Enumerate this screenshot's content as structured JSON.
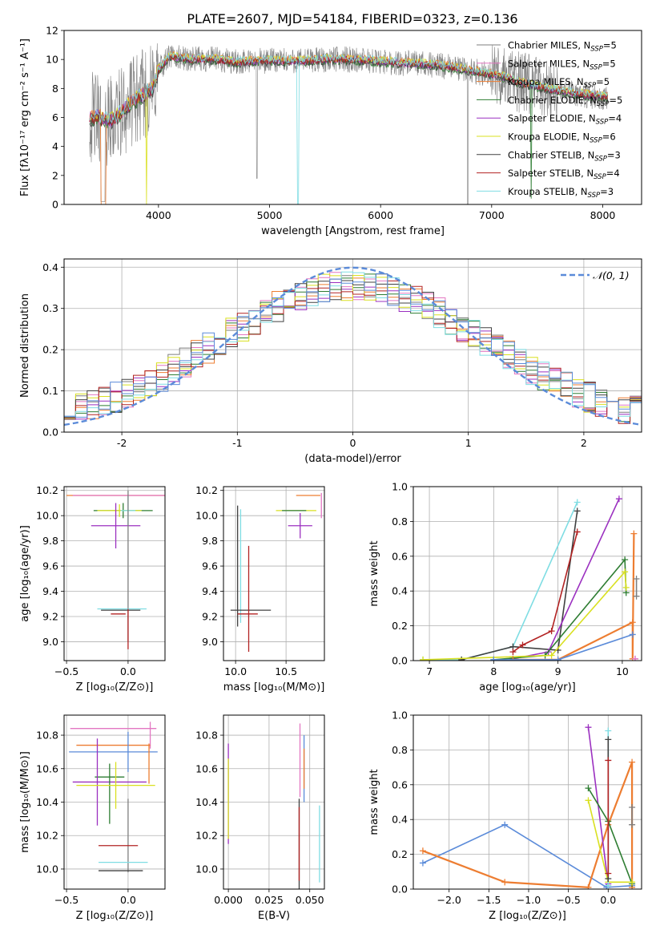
{
  "figure_title": "PLATE=2607, MJD=54184, FIBERID=0323, z=0.136",
  "colors": {
    "chabrier_miles": "#7f7f7f",
    "salpeter_miles": "#e377c2",
    "kroupa_miles": "#ed7d31",
    "chabrier_elodie": "#2e7d32",
    "salpeter_elodie": "#9b30c0",
    "kroupa_elodie": "#d9e021",
    "chabrier_stelib": "#404040",
    "salpeter_stelib": "#b22222",
    "kroupa_stelib": "#7fdde3",
    "blue": "#5b8bd9",
    "normal": "#5b8bd9"
  },
  "chart_data": [
    {
      "id": "spectrum",
      "type": "line",
      "title": "PLATE=2607, MJD=54184, FIBERID=0323, z=0.136",
      "xlabel": "wavelength [Angstrom, rest frame]",
      "ylabel": "Flux [fλ10⁻¹⁷ erg cm⁻² s⁻¹ A⁻¹]",
      "xlim": [
        3150,
        8350
      ],
      "ylim": [
        0,
        12
      ],
      "xticks": [
        4000,
        5000,
        6000,
        7000,
        8000
      ],
      "yticks": [
        0,
        2,
        4,
        6,
        8,
        10,
        12
      ],
      "grid": false,
      "legend_position": "top-right",
      "legend": [
        {
          "main": "Chabrier MILES, N",
          "sub": "SSP",
          "tail": "=5",
          "color": "#7f7f7f"
        },
        {
          "main": "Salpeter MILES, N",
          "sub": "SSP",
          "tail": "=5",
          "color": "#e377c2"
        },
        {
          "main": "Kroupa MILES, N",
          "sub": "SSP",
          "tail": "=5",
          "color": "#ed7d31"
        },
        {
          "main": "Chabrier ELODIE, N",
          "sub": "SSP",
          "tail": "=5",
          "color": "#2e7d32"
        },
        {
          "main": "Salpeter ELODIE, N",
          "sub": "SSP",
          "tail": "=4",
          "color": "#9b30c0"
        },
        {
          "main": "Kroupa ELODIE, N",
          "sub": "SSP",
          "tail": "=6",
          "color": "#d9e021"
        },
        {
          "main": "Chabrier STELIB, N",
          "sub": "SSP",
          "tail": "=3",
          "color": "#404040"
        },
        {
          "main": "Salpeter STELIB, N",
          "sub": "SSP",
          "tail": "=4",
          "color": "#b22222"
        },
        {
          "main": "Kroupa STELIB, N",
          "sub": "SSP",
          "tail": "=3",
          "color": "#7fdde3"
        }
      ],
      "continuum": [
        [
          3380,
          5.9
        ],
        [
          3450,
          6.1
        ],
        [
          3550,
          5.7
        ],
        [
          3650,
          6.2
        ],
        [
          3750,
          7.0
        ],
        [
          3850,
          7.5
        ],
        [
          3950,
          8.0
        ],
        [
          4000,
          9.3
        ],
        [
          4100,
          10.2
        ],
        [
          4300,
          10.0
        ],
        [
          4500,
          10.0
        ],
        [
          4700,
          9.8
        ],
        [
          4900,
          9.9
        ],
        [
          5100,
          9.9
        ],
        [
          5300,
          9.9
        ],
        [
          5500,
          10.0
        ],
        [
          5700,
          10.0
        ],
        [
          5900,
          9.9
        ],
        [
          6100,
          9.8
        ],
        [
          6300,
          9.7
        ],
        [
          6500,
          9.6
        ],
        [
          6700,
          9.4
        ],
        [
          6900,
          9.1
        ],
        [
          7100,
          8.8
        ],
        [
          7300,
          8.3
        ],
        [
          7500,
          8.0
        ],
        [
          7700,
          7.7
        ],
        [
          7900,
          7.5
        ],
        [
          8050,
          7.4
        ]
      ]
    },
    {
      "id": "residuals",
      "type": "histogram",
      "xlabel": "(data-model)/error",
      "ylabel": "Normed distribution",
      "xlim": [
        -2.5,
        2.5
      ],
      "ylim": [
        0,
        0.42
      ],
      "xticks": [
        -2,
        -1,
        0,
        1,
        2
      ],
      "yticks": [
        0.0,
        0.1,
        0.2,
        0.3,
        0.4
      ],
      "grid": true,
      "legend_position": "top-right",
      "legend": [
        {
          "label": "𝒩(0, 1)",
          "color": "#5b8bd9"
        }
      ],
      "bin_width": 0.1,
      "series_colors": [
        "#7f7f7f",
        "#e377c2",
        "#ed7d31",
        "#2e7d32",
        "#9b30c0",
        "#d9e021",
        "#404040",
        "#b22222",
        "#7fdde3",
        "#5b8bd9"
      ]
    },
    {
      "id": "age_vs_Z",
      "type": "errorbar",
      "xlabel": "Z [log₁₀(Z/Z⊙)]",
      "ylabel": "age  [log₁₀(age/yr)]",
      "xlim": [
        -0.52,
        0.3
      ],
      "ylim": [
        8.85,
        10.23
      ],
      "xticks": [
        -0.5,
        0.0
      ],
      "xticklabels": [
        "−0.5",
        "0.0"
      ],
      "yticks": [
        9.0,
        9.2,
        9.4,
        9.6,
        9.8,
        10.0,
        10.2
      ],
      "grid": true,
      "points": [
        {
          "x": 0.0,
          "y": 10.16,
          "xerr": 0.5,
          "yerr": 0.0,
          "color": "#ed7d31"
        },
        {
          "x": 0.0,
          "y": 10.16,
          "xerr": 0.45,
          "yerr": 0.0,
          "color": "#e377c2"
        },
        {
          "x": -0.04,
          "y": 10.04,
          "xerr": 0.24,
          "yerr": 0.06,
          "color": "#2e7d32"
        },
        {
          "x": -0.07,
          "y": 10.04,
          "xerr": 0.18,
          "yerr": 0.05,
          "color": "#d9e021"
        },
        {
          "x": 0.0,
          "y": 10.04,
          "xerr": 0.06,
          "yerr": 0.12,
          "color": "#7fdde3"
        },
        {
          "x": -0.1,
          "y": 9.92,
          "xerr": 0.2,
          "yerr": 0.18,
          "color": "#9b30c0"
        },
        {
          "x": 0.0,
          "y": 9.6,
          "xerr": 0.0,
          "yerr": 0.6,
          "color": "#7f7f7f"
        },
        {
          "x": -0.05,
          "y": 9.26,
          "xerr": 0.2,
          "yerr": 0.0,
          "color": "#7fdde3"
        },
        {
          "x": -0.06,
          "y": 9.25,
          "xerr": 0.16,
          "yerr": 0.0,
          "color": "#404040"
        },
        {
          "x": -0.08,
          "y": 9.22,
          "xerr": 0.06,
          "yerr": 0.0,
          "color": "#b22222"
        },
        {
          "x": 0.0,
          "y": 9.1,
          "xerr": 0.0,
          "yerr": 0.16,
          "color": "#b22222"
        }
      ]
    },
    {
      "id": "age_vs_mass",
      "type": "errorbar",
      "xlabel": "mass [log₁₀(M/M⊙)]",
      "ylabel": "",
      "xlim": [
        9.88,
        10.88
      ],
      "ylim": [
        8.85,
        10.23
      ],
      "xticks": [
        10.0,
        10.5
      ],
      "xticklabels": [
        "10.0",
        "10.5"
      ],
      "yticks": [
        9.0,
        9.2,
        9.4,
        9.6,
        9.8,
        10.0,
        10.2
      ],
      "grid": true,
      "points": [
        {
          "x": 10.72,
          "y": 10.16,
          "xerr": 0.12,
          "yerr": 0.0,
          "color": "#ed7d31"
        },
        {
          "x": 10.85,
          "y": 10.08,
          "xerr": 0.0,
          "yerr": 0.1,
          "color": "#e377c2"
        },
        {
          "x": 10.6,
          "y": 10.04,
          "xerr": 0.2,
          "yerr": 0.0,
          "color": "#d9e021"
        },
        {
          "x": 10.58,
          "y": 10.04,
          "xerr": 0.12,
          "yerr": 0.0,
          "color": "#2e7d32"
        },
        {
          "x": 10.64,
          "y": 9.92,
          "xerr": 0.12,
          "yerr": 0.1,
          "color": "#9b30c0"
        },
        {
          "x": 10.02,
          "y": 9.6,
          "xerr": 0.0,
          "yerr": 0.48,
          "color": "#404040"
        },
        {
          "x": 10.05,
          "y": 9.6,
          "xerr": 0.0,
          "yerr": 0.45,
          "color": "#7fdde3"
        },
        {
          "x": 10.15,
          "y": 9.25,
          "xerr": 0.2,
          "yerr": 0.0,
          "color": "#404040"
        },
        {
          "x": 10.13,
          "y": 9.34,
          "xerr": 0.0,
          "yerr": 0.42,
          "color": "#b22222"
        },
        {
          "x": 10.12,
          "y": 9.22,
          "xerr": 0.1,
          "yerr": 0.0,
          "color": "#b22222"
        }
      ]
    },
    {
      "id": "weight_vs_age",
      "type": "line",
      "xlabel": "age  [log₁₀(age/yr)]",
      "ylabel": "mass weight",
      "xlim": [
        6.75,
        10.3
      ],
      "ylim": [
        0,
        1
      ],
      "xticks": [
        7,
        8,
        9,
        10
      ],
      "yticks": [
        0.0,
        0.2,
        0.4,
        0.6,
        0.8,
        1.0
      ],
      "grid": true,
      "series": [
        {
          "color": "#7fdde3",
          "x": [
            6.9,
            7.5,
            8.3,
            9.3
          ],
          "y": [
            0.005,
            0.005,
            0.08,
            0.91
          ]
        },
        {
          "color": "#404040",
          "x": [
            7.5,
            8.3,
            9.0,
            9.3
          ],
          "y": [
            0.005,
            0.08,
            0.06,
            0.86
          ]
        },
        {
          "color": "#b22222",
          "x": [
            8.3,
            8.45,
            8.9,
            9.3
          ],
          "y": [
            0.05,
            0.09,
            0.17,
            0.74
          ]
        },
        {
          "color": "#9b30c0",
          "x": [
            8.3,
            8.85,
            9.95
          ],
          "y": [
            0.01,
            0.05,
            0.93
          ]
        },
        {
          "color": "#2e7d32",
          "x": [
            8.0,
            8.8,
            10.04,
            10.06
          ],
          "y": [
            0.005,
            0.03,
            0.58,
            0.39
          ]
        },
        {
          "color": "#d9e021",
          "x": [
            6.9,
            8.9,
            10.04,
            10.06
          ],
          "y": [
            0.005,
            0.03,
            0.51,
            0.42
          ]
        },
        {
          "color": "#ed7d31",
          "x": [
            8.3,
            9.0,
            10.16,
            10.16,
            10.18
          ],
          "y": [
            0.005,
            0.005,
            0.22,
            0.01,
            0.73
          ]
        },
        {
          "color": "#5b8bd9",
          "x": [
            8.0,
            9.0,
            10.16
          ],
          "y": [
            0.005,
            0.005,
            0.15
          ]
        },
        {
          "color": "#7f7f7f",
          "x": [
            10.22,
            10.22
          ],
          "y": [
            0.37,
            0.47
          ]
        },
        {
          "color": "#e377c2",
          "x": [
            10.2,
            10.2
          ],
          "y": [
            0.01,
            0.01
          ]
        }
      ]
    },
    {
      "id": "mass_vs_Z",
      "type": "errorbar",
      "xlabel": "Z [log₁₀(Z/Z⊙)]",
      "ylabel": "mass [log₁₀(M/M⊙)]",
      "xlim": [
        -0.52,
        0.3
      ],
      "ylim": [
        9.88,
        10.92
      ],
      "xticks": [
        -0.5,
        0.0
      ],
      "xticklabels": [
        "−0.5",
        "0.0"
      ],
      "yticks": [
        10.0,
        10.2,
        10.4,
        10.6,
        10.8
      ],
      "grid": true,
      "points": [
        {
          "x": -0.12,
          "y": 10.84,
          "xerr": 0.35,
          "yerr": 0.0,
          "color": "#e377c2"
        },
        {
          "x": 0.18,
          "y": 10.8,
          "xerr": 0.0,
          "yerr": 0.08,
          "color": "#e377c2"
        },
        {
          "x": -0.12,
          "y": 10.74,
          "xerr": 0.3,
          "yerr": 0.0,
          "color": "#ed7d31"
        },
        {
          "x": -0.12,
          "y": 10.7,
          "xerr": 0.36,
          "yerr": 0.0,
          "color": "#5b8bd9"
        },
        {
          "x": 0.0,
          "y": 10.7,
          "xerr": 0.0,
          "yerr": 0.12,
          "color": "#5b8bd9"
        },
        {
          "x": 0.17,
          "y": 10.63,
          "xerr": 0.0,
          "yerr": 0.12,
          "color": "#ed7d31"
        },
        {
          "x": -0.15,
          "y": 10.55,
          "xerr": 0.12,
          "yerr": 0.0,
          "color": "#2e7d32"
        },
        {
          "x": -0.15,
          "y": 10.52,
          "xerr": 0.3,
          "yerr": 0.0,
          "color": "#9b30c0"
        },
        {
          "x": -0.25,
          "y": 10.52,
          "xerr": 0.0,
          "yerr": 0.26,
          "color": "#9b30c0"
        },
        {
          "x": -0.15,
          "y": 10.45,
          "xerr": 0.0,
          "yerr": 0.18,
          "color": "#2e7d32"
        },
        {
          "x": -0.1,
          "y": 10.5,
          "xerr": 0.32,
          "yerr": 0.0,
          "color": "#d9e021"
        },
        {
          "x": -0.1,
          "y": 10.5,
          "xerr": 0.0,
          "yerr": 0.14,
          "color": "#d9e021"
        },
        {
          "x": 0.0,
          "y": 10.2,
          "xerr": 0.0,
          "yerr": 0.22,
          "color": "#7f7f7f"
        },
        {
          "x": -0.08,
          "y": 10.14,
          "xerr": 0.16,
          "yerr": 0.0,
          "color": "#b22222"
        },
        {
          "x": -0.04,
          "y": 10.04,
          "xerr": 0.2,
          "yerr": 0.0,
          "color": "#7fdde3"
        },
        {
          "x": -0.06,
          "y": 9.99,
          "xerr": 0.18,
          "yerr": 0.0,
          "color": "#404040"
        }
      ]
    },
    {
      "id": "mass_vs_ebv",
      "type": "errorbar",
      "xlabel": "E(B-V)",
      "ylabel": "",
      "xlim": [
        -0.003,
        0.059
      ],
      "ylim": [
        9.88,
        10.92
      ],
      "xticks": [
        0.0,
        0.025,
        0.05
      ],
      "xticklabels": [
        "0.000",
        "0.025",
        "0.050"
      ],
      "yticks": [
        10.0,
        10.2,
        10.4,
        10.6,
        10.8
      ],
      "grid": true,
      "points": [
        {
          "x": 0.0,
          "y": 10.45,
          "xerr": 0.0,
          "yerr": 0.3,
          "color": "#9b30c0"
        },
        {
          "x": 0.0,
          "y": 10.42,
          "xerr": 0.0,
          "yerr": 0.24,
          "color": "#d9e021"
        },
        {
          "x": 0.0435,
          "y": 10.15,
          "xerr": 0.0,
          "yerr": 0.27,
          "color": "#404040"
        },
        {
          "x": 0.0435,
          "y": 10.15,
          "xerr": 0.0,
          "yerr": 0.22,
          "color": "#b22222"
        },
        {
          "x": 0.044,
          "y": 10.65,
          "xerr": 0.0,
          "yerr": 0.22,
          "color": "#e377c2"
        },
        {
          "x": 0.0465,
          "y": 10.6,
          "xerr": 0.0,
          "yerr": 0.2,
          "color": "#5b8bd9"
        },
        {
          "x": 0.0465,
          "y": 10.6,
          "xerr": 0.0,
          "yerr": 0.12,
          "color": "#ed7d31"
        },
        {
          "x": 0.056,
          "y": 10.15,
          "xerr": 0.0,
          "yerr": 0.23,
          "color": "#7fdde3"
        }
      ]
    },
    {
      "id": "weight_vs_Z",
      "type": "line",
      "xlabel": "Z [log₁₀(Z/Z⊙)]",
      "ylabel": "mass weight",
      "xlim": [
        -2.45,
        0.42
      ],
      "ylim": [
        0,
        1
      ],
      "xticks": [
        -2.0,
        -1.5,
        -1.0,
        -0.5,
        0.0
      ],
      "xticklabels": [
        "−2.0",
        "−1.5",
        "−1.0",
        "−0.5",
        "0.0"
      ],
      "yticks": [
        0.0,
        0.2,
        0.4,
        0.6,
        0.8,
        1.0
      ],
      "grid": true,
      "series": [
        {
          "color": "#5b8bd9",
          "x": [
            -2.33,
            -1.3,
            -0.02,
            0.3
          ],
          "y": [
            0.15,
            0.37,
            0.01,
            0.02
          ]
        },
        {
          "color": "#ed7d31",
          "x": [
            -2.33,
            -1.3,
            -0.25,
            0.0,
            0.3,
            0.3
          ],
          "y": [
            0.22,
            0.04,
            0.01,
            0.37,
            0.73,
            0.01
          ]
        },
        {
          "color": "#9b30c0",
          "x": [
            -0.25,
            0.0
          ],
          "y": [
            0.93,
            0.03
          ]
        },
        {
          "color": "#2e7d32",
          "x": [
            -0.25,
            0.0,
            0.3
          ],
          "y": [
            0.58,
            0.39,
            0.03
          ]
        },
        {
          "color": "#d9e021",
          "x": [
            -0.25,
            0.0,
            0.3
          ],
          "y": [
            0.51,
            0.04,
            0.04
          ]
        },
        {
          "color": "#7fdde3",
          "x": [
            0.0,
            0.0
          ],
          "y": [
            0.91,
            0.02
          ]
        },
        {
          "color": "#404040",
          "x": [
            0.0,
            0.0
          ],
          "y": [
            0.86,
            0.06
          ]
        },
        {
          "color": "#b22222",
          "x": [
            0.0,
            0.0
          ],
          "y": [
            0.74,
            0.09
          ]
        },
        {
          "color": "#7f7f7f",
          "x": [
            0.3,
            0.3
          ],
          "y": [
            0.47,
            0.37
          ]
        }
      ]
    }
  ]
}
